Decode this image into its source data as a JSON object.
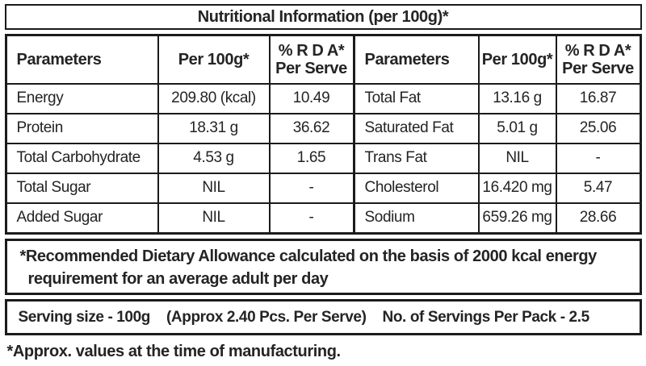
{
  "title": "Nutritional Information (per 100g)*",
  "table": {
    "headers": {
      "parameters_left": "Parameters",
      "per100g_left": "Per 100g*",
      "rda_left_line1": "% R D A*",
      "rda_left_line2": "Per Serve",
      "parameters_right": "Parameters",
      "per100g_right": "Per 100g*",
      "rda_right_line1": "% R D A*",
      "rda_right_line2": "Per Serve"
    },
    "left_rows": [
      {
        "parameter": "Energy",
        "per_100g": "209.80 (kcal)",
        "rda": "10.49"
      },
      {
        "parameter": "Protein",
        "per_100g": "18.31 g",
        "rda": "36.62"
      },
      {
        "parameter": "Total Carbohydrate",
        "per_100g": "4.53 g",
        "rda": "1.65"
      },
      {
        "parameter": "Total Sugar",
        "per_100g": "NIL",
        "rda": "-"
      },
      {
        "parameter": "Added Sugar",
        "per_100g": "NIL",
        "rda": "-"
      }
    ],
    "right_rows": [
      {
        "parameter": "Total Fat",
        "per_100g": "13.16 g",
        "rda": "16.87"
      },
      {
        "parameter": "Saturated Fat",
        "per_100g": "5.01 g",
        "rda": "25.06"
      },
      {
        "parameter": "Trans Fat",
        "per_100g": "NIL",
        "rda": "-"
      },
      {
        "parameter": "Cholesterol",
        "per_100g": "16.420 mg",
        "rda": "5.47"
      },
      {
        "parameter": "Sodium",
        "per_100g": "659.26 mg",
        "rda": "28.66"
      }
    ]
  },
  "rda_note": {
    "line1": "*Recommended Dietary Allowance calculated on the basis of 2000 kcal energy",
    "line2": "requirement for an average adult per day"
  },
  "serving_info": {
    "serving_size": "Serving size - 100g",
    "approx_pcs": "(Approx 2.40 Pcs. Per Serve)",
    "servings_per_pack": "No. of Servings Per Pack - 2.5"
  },
  "approx_note": "*Approx. values at the time of manufacturing.",
  "colors": {
    "text": "#242424",
    "border": "#1b1b1b",
    "background": "#ffffff"
  }
}
